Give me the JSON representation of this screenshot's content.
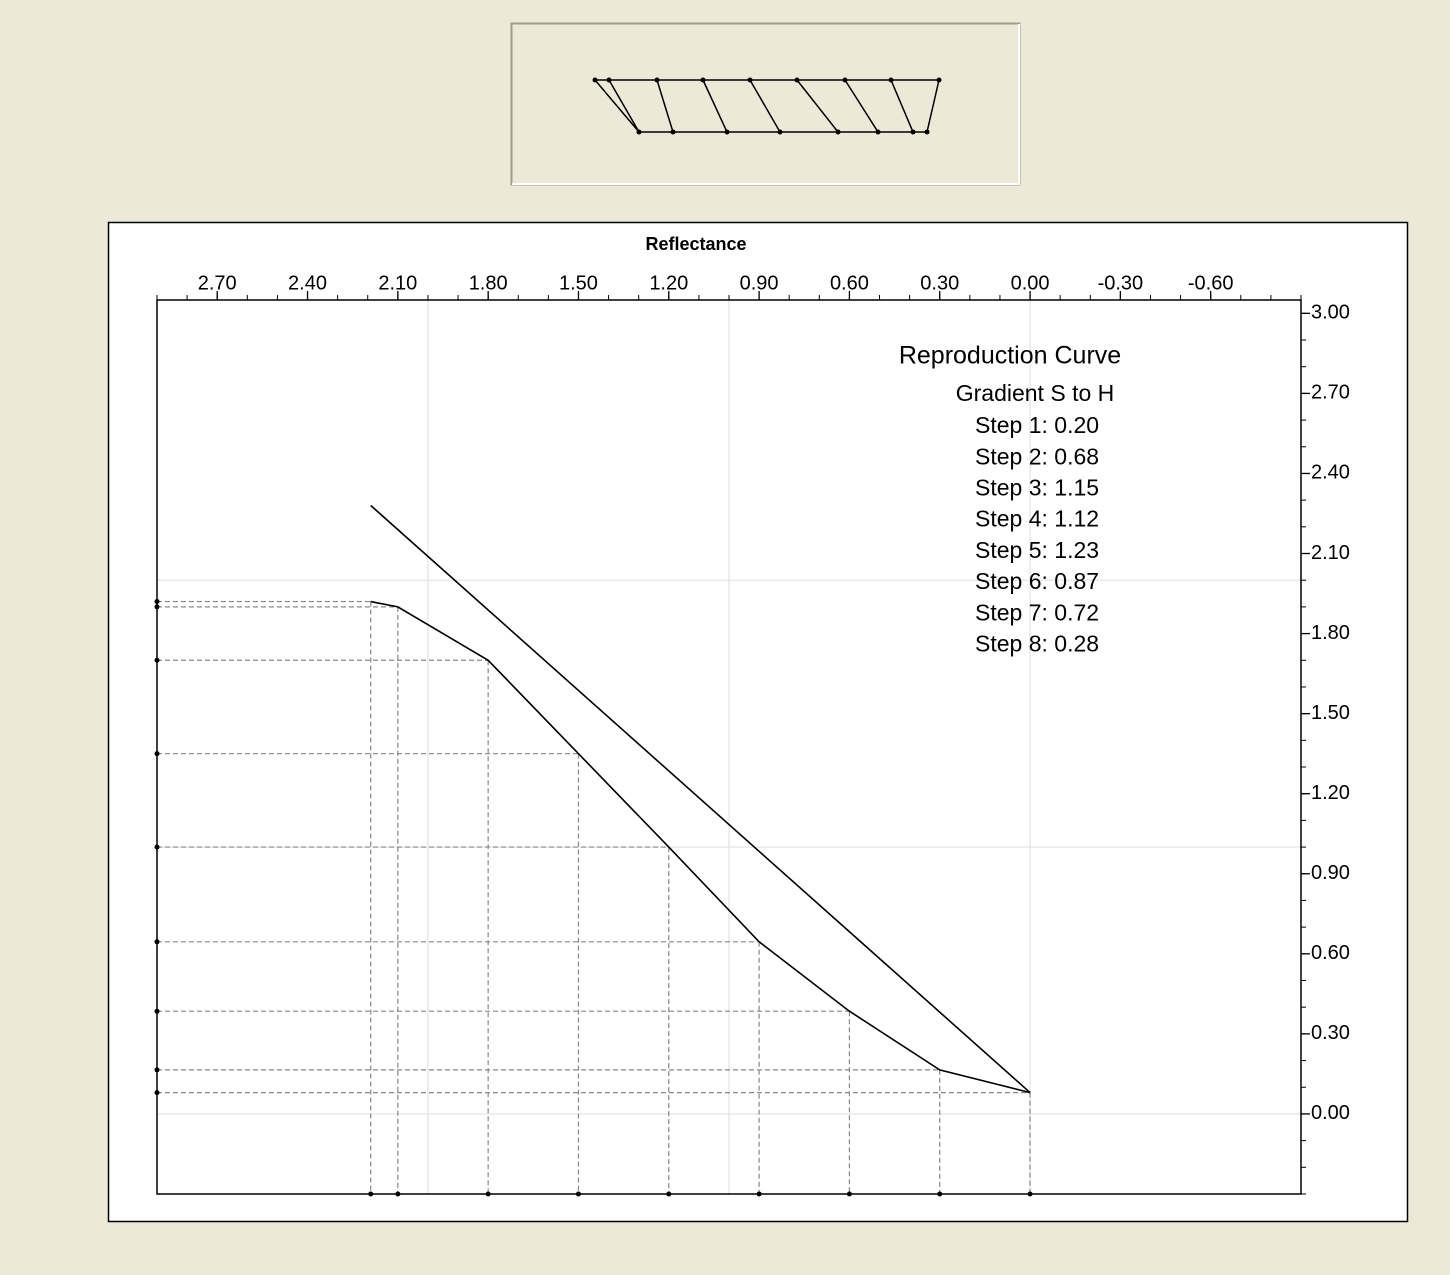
{
  "chart_data": {
    "type": "line",
    "title": "Reflectance",
    "annotations": [
      "Reproduction Curve",
      "Gradient S to H",
      "Step 1: 0.20",
      "Step 2: 0.68",
      "Step 3: 1.15",
      "Step 4: 1.12",
      "Step 5: 1.23",
      "Step 6: 0.87",
      "Step 7: 0.72",
      "Step 8: 0.28"
    ],
    "xlim": [
      2.9,
      -0.9
    ],
    "ylim": [
      -0.3,
      3.05
    ],
    "xticks": [
      {
        "value": 2.7,
        "label": "2.70"
      },
      {
        "value": 2.4,
        "label": "2.40"
      },
      {
        "value": 2.1,
        "label": "2.10"
      },
      {
        "value": 1.8,
        "label": "1.80"
      },
      {
        "value": 1.5,
        "label": "1.50"
      },
      {
        "value": 1.2,
        "label": "1.20"
      },
      {
        "value": 0.9,
        "label": "0.90"
      },
      {
        "value": 0.6,
        "label": "0.60"
      },
      {
        "value": 0.3,
        "label": "0.30"
      },
      {
        "value": 0,
        "label": "0.00"
      },
      {
        "value": -0.3,
        "label": "-0.30"
      },
      {
        "value": -0.6,
        "label": "-0.60"
      }
    ],
    "yticks": [
      {
        "value": 3,
        "label": "3.00"
      },
      {
        "value": 2.7,
        "label": "2.70"
      },
      {
        "value": 2.4,
        "label": "2.40"
      },
      {
        "value": 2.1,
        "label": "2.10"
      },
      {
        "value": 1.8,
        "label": "1.80"
      },
      {
        "value": 1.5,
        "label": "1.50"
      },
      {
        "value": 1.2,
        "label": "1.20"
      },
      {
        "value": 0.9,
        "label": "0.90"
      },
      {
        "value": 0.6,
        "label": "0.60"
      },
      {
        "value": 0.3,
        "label": "0.30"
      },
      {
        "value": 0,
        "label": "0.00"
      }
    ],
    "minor_tick_step": 0.1,
    "xgrid": [
      2,
      1,
      0
    ],
    "ygrid": [
      0,
      1,
      2
    ],
    "series": [
      {
        "color": "#000000",
        "x": [
          2.19,
          0.0
        ],
        "values": [
          2.28,
          0.08
        ]
      },
      {
        "color": "#000000",
        "guides": true,
        "x": [
          2.19,
          2.1,
          1.8,
          1.5,
          1.2,
          0.9,
          0.6,
          0.3,
          0.0
        ],
        "values": [
          1.92,
          1.9,
          1.7,
          1.35,
          1.0,
          0.645,
          0.385,
          0.165,
          0.08
        ]
      }
    ]
  }
}
